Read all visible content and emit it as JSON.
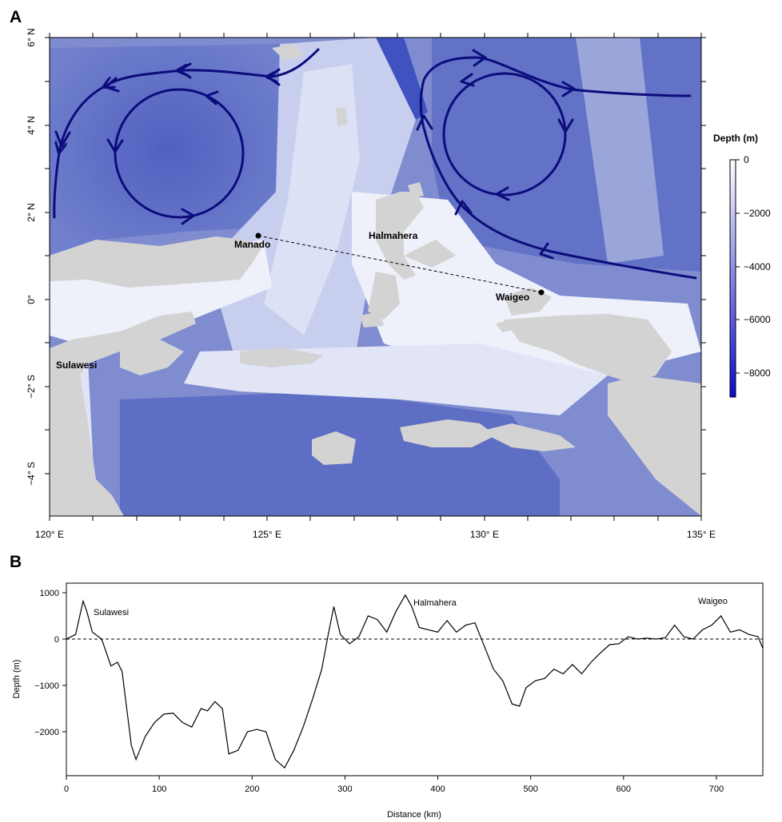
{
  "panel_a": {
    "letter": "A",
    "lon_ticks": [
      "120° E",
      "125° E",
      "130° E",
      "135° E"
    ],
    "lat_ticks": [
      "6° N",
      "4° N",
      "2° N",
      "0°",
      "−2° S",
      "−4° S"
    ],
    "legend": {
      "title": "Depth (m)",
      "ticks": [
        "0",
        "−2000",
        "−4000",
        "−6000",
        "−8000"
      ],
      "color_shallow": "#ffffff",
      "color_deep": "#0a0ad2"
    },
    "places": {
      "manado": "Manado",
      "halmahera": "Halmahera",
      "waigeo": "Waigeo",
      "sulawesi": "Sulawesi"
    },
    "colors": {
      "land": "#d3d3d3",
      "ocean_deep": "#6a78c8",
      "ocean_shallow": "#eef0fa",
      "current": "#0c0c7c"
    },
    "chart_data": {
      "type": "map",
      "xlim": [
        120,
        135
      ],
      "ylim": [
        -5,
        6
      ],
      "transect": {
        "from": "Manado",
        "to": "Waigeo",
        "from_lonlat": [
          124.85,
          1.48
        ],
        "to_lonlat": [
          131.4,
          -0.35
        ]
      }
    }
  },
  "panel_b": {
    "letter": "B",
    "ylabel": "Depth (m)",
    "xlabel": "Distance (km)",
    "x_ticks": [
      "0",
      "100",
      "200",
      "300",
      "400",
      "500",
      "600",
      "700"
    ],
    "y_ticks": [
      "1000",
      "0",
      "−1000",
      "−2000"
    ],
    "annotations": {
      "sulawesi": "Sulawesi",
      "halmahera": "Halmahera",
      "waigeo": "Waigeo"
    },
    "chart_data": {
      "type": "line",
      "xlim": [
        0,
        750
      ],
      "ylim": [
        -2900,
        1100
      ],
      "reference_line_y": 0,
      "x": [
        0,
        10,
        18,
        22,
        28,
        38,
        48,
        55,
        60,
        70,
        75,
        85,
        95,
        105,
        115,
        125,
        135,
        145,
        152,
        160,
        168,
        175,
        185,
        195,
        205,
        215,
        225,
        235,
        245,
        255,
        265,
        275,
        282,
        288,
        295,
        305,
        315,
        325,
        335,
        345,
        355,
        365,
        372,
        380,
        390,
        400,
        410,
        420,
        430,
        440,
        450,
        460,
        470,
        480,
        488,
        495,
        505,
        515,
        525,
        535,
        545,
        555,
        565,
        575,
        585,
        595,
        605,
        615,
        625,
        635,
        645,
        655,
        665,
        675,
        685,
        695,
        705,
        715,
        725,
        735,
        745,
        750
      ],
      "y": [
        0,
        100,
        820,
        600,
        150,
        0,
        -580,
        -500,
        -700,
        -2300,
        -2600,
        -2100,
        -1800,
        -1620,
        -1600,
        -1800,
        -1900,
        -1500,
        -1550,
        -1350,
        -1500,
        -2480,
        -2400,
        -2000,
        -1950,
        -2000,
        -2600,
        -2780,
        -2400,
        -1900,
        -1300,
        -650,
        100,
        700,
        100,
        -100,
        50,
        500,
        420,
        150,
        600,
        950,
        700,
        250,
        200,
        150,
        400,
        150,
        300,
        350,
        -150,
        -650,
        -900,
        -1400,
        -1450,
        -1050,
        -900,
        -850,
        -650,
        -750,
        -550,
        -750,
        -500,
        -300,
        -120,
        -100,
        50,
        0,
        20,
        0,
        30,
        300,
        50,
        0,
        200,
        300,
        500,
        150,
        200,
        100,
        50,
        -200
      ]
    }
  }
}
